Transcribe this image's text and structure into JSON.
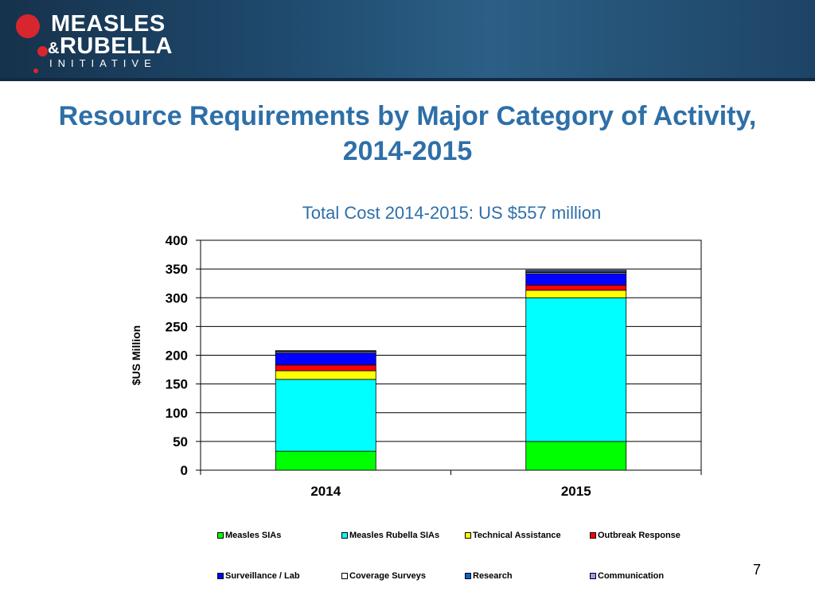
{
  "header": {
    "logo_line1": "MEASLES",
    "logo_amp": "&",
    "logo_line2": "RUBELLA",
    "logo_line3": "INITIATIVE"
  },
  "title_line1": "Resource Requirements by Major Category of Activity,",
  "title_line2": "2014-2015",
  "page_number": "7",
  "chart_data": {
    "type": "bar",
    "stacked": true,
    "title": "Total Cost 2014-2015: US $557 million",
    "xlabel": "",
    "ylabel": "$US Million",
    "categories": [
      "2014",
      "2015"
    ],
    "ylim": [
      0,
      400
    ],
    "yticks": [
      0,
      50,
      100,
      150,
      200,
      250,
      300,
      350,
      400
    ],
    "grid": true,
    "legend_position": "bottom",
    "series": [
      {
        "name": "Measles SIAs",
        "color": "#00ff00",
        "values": [
          33,
          50
        ]
      },
      {
        "name": "Measles Rubella SIAs",
        "color": "#00ffff",
        "values": [
          125,
          250
        ]
      },
      {
        "name": "Technical Assistance",
        "color": "#ffff00",
        "values": [
          15,
          13
        ]
      },
      {
        "name": "Outbreak Response",
        "color": "#ff0000",
        "values": [
          10,
          9
        ]
      },
      {
        "name": "Surveillance / Lab",
        "color": "#0000ff",
        "values": [
          21,
          20
        ]
      },
      {
        "name": "Coverage Surveys",
        "color": "#ffffff",
        "values": [
          2,
          2
        ]
      },
      {
        "name": "Research",
        "color": "#0066cc",
        "values": [
          1,
          2
        ]
      },
      {
        "name": "Communication",
        "color": "#9999ff",
        "values": [
          1,
          2
        ]
      }
    ]
  }
}
